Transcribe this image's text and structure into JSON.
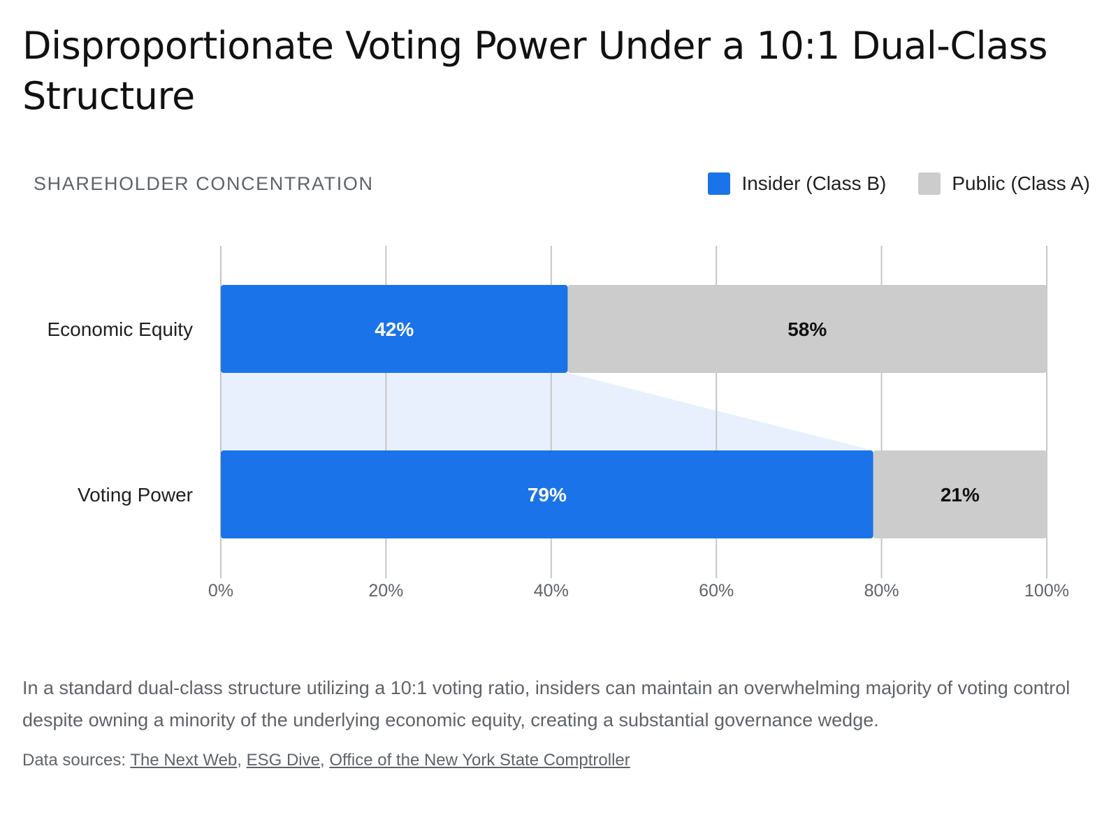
{
  "title": "Disproportionate Voting Power Under a 10:1 Dual-Class Structure",
  "chart_data": {
    "type": "bar",
    "orientation": "horizontal",
    "stacked": true,
    "subtitle": "SHAREHOLDER CONCENTRATION",
    "categories": [
      "Economic Equity",
      "Voting Power"
    ],
    "series": [
      {
        "name": "Insider (Class B)",
        "values": [
          42,
          79
        ],
        "labels": [
          "42%",
          "79%"
        ],
        "color": "#1a73e8",
        "label_color": "#ffffff"
      },
      {
        "name": "Public (Class A)",
        "values": [
          58,
          21
        ],
        "labels": [
          "58%",
          "21%"
        ],
        "color": "#cccccc",
        "label_color": "#111111"
      }
    ],
    "xlim": [
      0,
      100
    ],
    "xticks": [
      0,
      20,
      40,
      60,
      80,
      100
    ],
    "xtick_labels": [
      "0%",
      "20%",
      "40%",
      "60%",
      "80%",
      "100%"
    ],
    "grid": "vertical",
    "legend_position": "top-right",
    "connector_color": "#e8f0fe"
  },
  "summary": "In a standard dual-class structure utilizing a 10:1 voting ratio, insiders can maintain an overwhelming majority of voting control despite owning a minority of the underlying economic equity, creating a substantial governance wedge.",
  "sources": {
    "prefix": "Data sources: ",
    "links": [
      "The Next Web",
      "ESG Dive",
      "Office of the New York State Comptroller"
    ]
  }
}
